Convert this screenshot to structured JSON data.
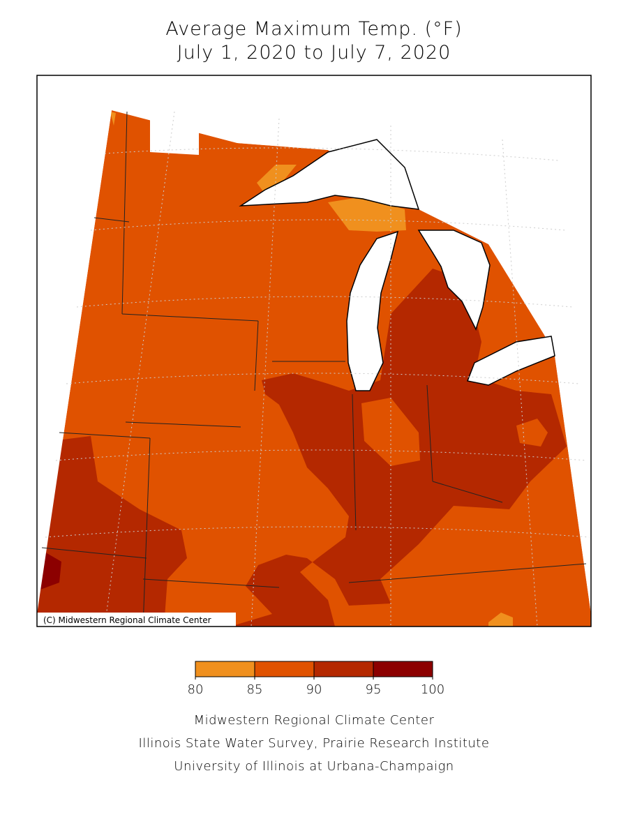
{
  "title": {
    "line1": "Average Maximum Temp. (°F)",
    "line2": "July 1, 2020 to July 7, 2020"
  },
  "map": {
    "copyright": "(C) Midwestern Regional Climate Center"
  },
  "legend": {
    "bins": [
      80,
      85,
      90,
      95,
      100
    ],
    "colors": [
      "#f0901e",
      "#e05200",
      "#b42800",
      "#8c0000"
    ]
  },
  "footer": {
    "lines": [
      "Midwestern Regional Climate Center",
      "Illinois State Water Survey, Prairie Research Institute",
      "University of Illinois at Urbana-Champaign"
    ]
  }
}
